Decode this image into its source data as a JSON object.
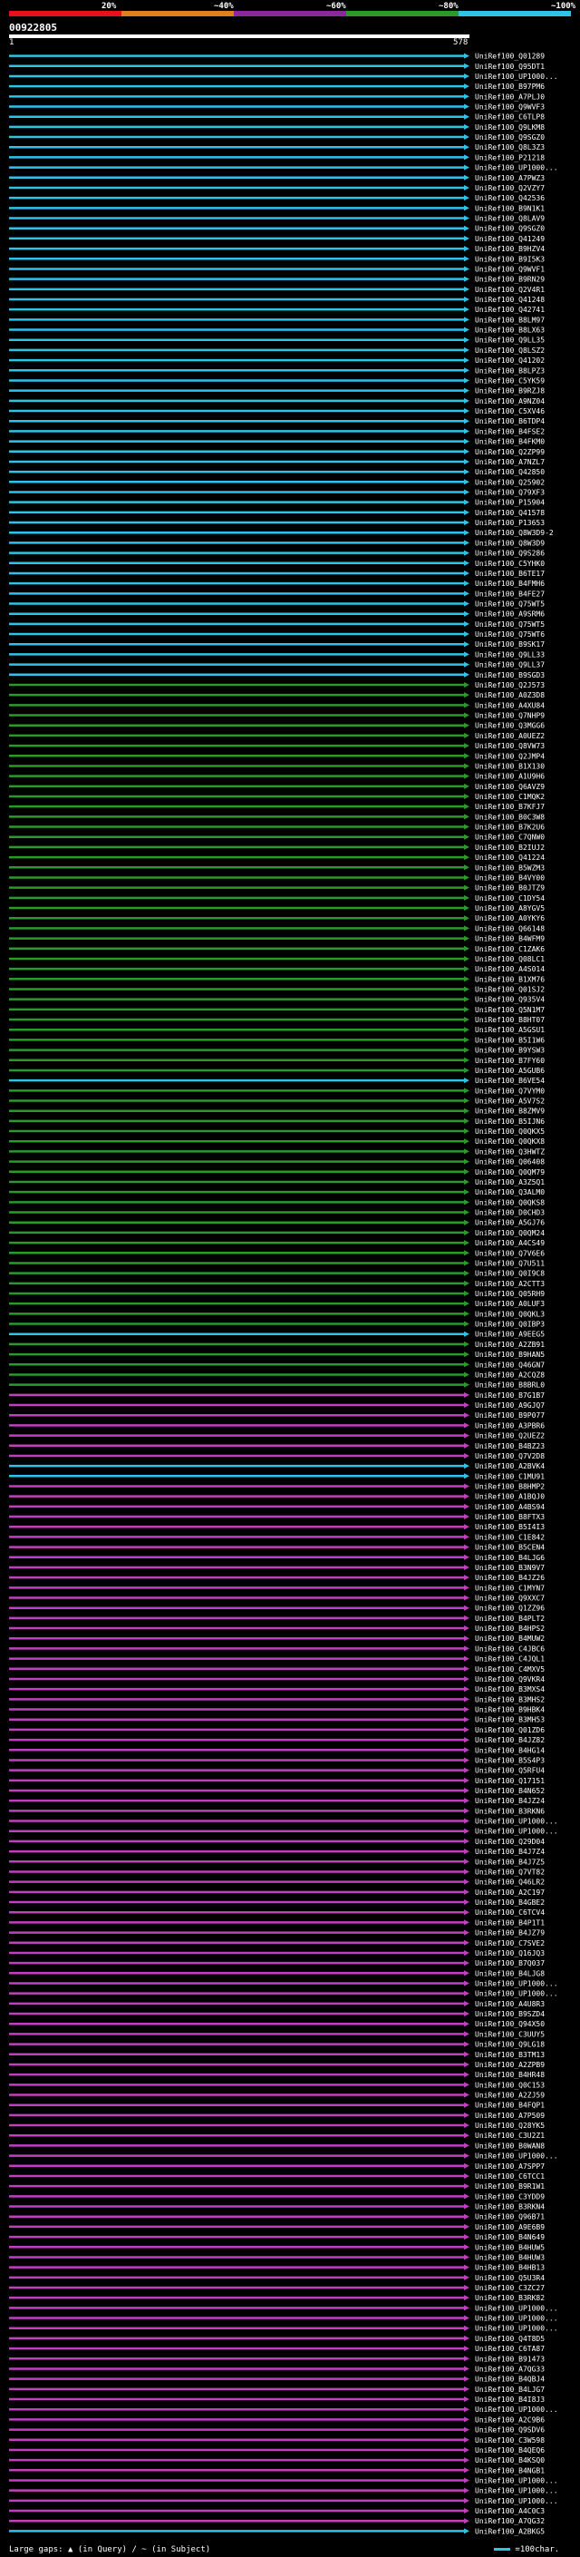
{
  "legend": {
    "segments": [
      {
        "label": "20%",
        "color": "#e8101e"
      },
      {
        "label": "~40%",
        "color": "#e0801c"
      },
      {
        "label": "~60%",
        "color": "#8a2a9a"
      },
      {
        "label": "~80%",
        "color": "#2a9a2a"
      },
      {
        "label": "~100%",
        "color": "#2ec4e8"
      }
    ]
  },
  "query": {
    "name": "00922805",
    "start": "1",
    "end": "578"
  },
  "colors": {
    "cyan": "#2ec4e8",
    "green": "#2a9a2a",
    "magenta": "#c040c0"
  },
  "hits": {
    "labels": [
      "UniRef100_Q01289",
      "UniRef100_Q95DT1",
      "UniRef100_UP1000...",
      "UniRef100_B97PM6",
      "UniRef100_A7PLJ0",
      "UniRef100_Q9WVF3",
      "UniRef100_C6TLP8",
      "UniRef100_Q9LKM8",
      "UniRef100_Q9SGZ0",
      "UniRef100_Q8L3Z3",
      "UniRef100_P21218",
      "UniRef100_UP1000...",
      "UniRef100_A7PWZ3",
      "UniRef100_Q2VZY7",
      "UniRef100_Q42536",
      "UniRef100_B9N1K1",
      "UniRef100_Q8LAV9",
      "UniRef100_Q9SGZ0",
      "UniRef100_Q41249",
      "UniRef100_B9HZV4",
      "UniRef100_B9I5K3",
      "UniRef100_Q9WVF1",
      "UniRef100_B9RN29",
      "UniRef100_Q2V4R1",
      "UniRef100_Q41248",
      "UniRef100_Q42741",
      "UniRef100_B8LM97",
      "UniRef100_B8LX63",
      "UniRef100_Q9LL35",
      "UniRef100_Q8LSZ2",
      "UniRef100_Q41202",
      "UniRef100_B8LPZ3",
      "UniRef100_C5YK59",
      "UniRef100_B9RZJ8",
      "UniRef100_A9NZ04",
      "UniRef100_C5XV46",
      "UniRef100_B6TDP4",
      "UniRef100_B4FSE2",
      "UniRef100_B4FKM0",
      "UniRef100_Q2ZP99",
      "UniRef100_A7NZL7",
      "UniRef100_Q42850",
      "UniRef100_Q25902",
      "UniRef100_Q79XF3",
      "UniRef100_P15904",
      "UniRef100_Q41578",
      "UniRef100_P13653",
      "UniRef100_Q8W3D9-2",
      "UniRef100_Q8W3D9",
      "UniRef100_Q9S286",
      "UniRef100_C5YHK0",
      "UniRef100_B6TE17",
      "UniRef100_B4FMH6",
      "UniRef100_B4FE27",
      "UniRef100_Q75WT5",
      "UniRef100_A9SRM6",
      "UniRef100_Q75WT5",
      "UniRef100_Q75WT6",
      "UniRef100_B9SK17",
      "UniRef100_Q9LL33",
      "UniRef100_Q9LL37",
      "UniRef100_B9SGD3",
      "UniRef100_Q2J573",
      "UniRef100_A0Z3D8",
      "UniRef100_A4XU84",
      "UniRef100_Q7NHP9",
      "UniRef100_Q3MGG6",
      "UniRef100_A0UEZ2",
      "UniRef100_Q8VW73",
      "UniRef100_Q2JMP4",
      "UniRef100_B1X130",
      "UniRef100_A1U9H6",
      "UniRef100_Q6AVZ9",
      "UniRef100_C1MQK2",
      "UniRef100_B7KFJ7",
      "UniRef100_B0C3W8",
      "UniRef100_B7K2U6",
      "UniRef100_C7QNW0",
      "UniRef100_B2IUJ2",
      "UniRef100_Q41224",
      "UniRef100_B5WZM3",
      "UniRef100_B4VY00",
      "UniRef100_B0JTZ9",
      "UniRef100_C1DY54",
      "UniRef100_A8YGV5",
      "UniRef100_A0YKY6",
      "UniRef100_Q66148",
      "UniRef100_B4WFM9",
      "UniRef100_C1ZAK6",
      "UniRef100_Q08LC1",
      "UniRef100_A4S014",
      "UniRef100_B1XM76",
      "UniRef100_Q01SJ2",
      "UniRef100_Q935V4",
      "UniRef100_Q5N1M7",
      "UniRef100_B8HT07",
      "UniRef100_A5GSU1",
      "UniRef100_B5I1W6",
      "UniRef100_B9YSW3",
      "UniRef100_B7FY60",
      "UniRef100_A5GUB6",
      "UniRef100_B6VE54",
      "UniRef100_Q7VYM0",
      "UniRef100_A5V7S2",
      "UniRef100_B8ZMV9",
      "UniRef100_B5IJN6",
      "UniRef100_Q0QKX5",
      "UniRef100_Q0QKX8",
      "UniRef100_Q3HWTZ",
      "UniRef100_Q06408",
      "UniRef100_Q0QM79",
      "UniRef100_A3Z5Q1",
      "UniRef100_Q3ALM0",
      "UniRef100_Q0QKS8",
      "UniRef100_D0CHD3",
      "UniRef100_A5GJ76",
      "UniRef100_Q0QM24",
      "UniRef100_A4CS49",
      "UniRef100_Q7V6E6",
      "UniRef100_Q7U511",
      "UniRef100_Q0I9C8",
      "UniRef100_A2CTT3",
      "UniRef100_Q05RH9",
      "UniRef100_A0LUF3",
      "UniRef100_Q0QKL3",
      "UniRef100_Q0IBP3",
      "UniRef100_A9EEG5",
      "UniRef100_A2ZB91",
      "UniRef100_B9HAN5",
      "UniRef100_Q46GN7",
      "UniRef100_A2CQZ8",
      "UniRef100_B8BRL0",
      "UniRef100_B7G1B7",
      "UniRef100_A9GJQ7",
      "UniRef100_B9P077",
      "UniRef100_A3PBR6",
      "UniRef100_Q2UEZ2",
      "UniRef100_B4BZ23",
      "UniRef100_Q7V2D8",
      "UniRef100_A2BVK4",
      "UniRef100_C1MU91",
      "UniRef100_B8HMP2",
      "UniRef100_A1BQJ0",
      "UniRef100_A4BS94",
      "UniRef100_B8FTX3",
      "UniRef100_B5I4I3",
      "UniRef100_C1E842",
      "UniRef100_B5CEN4",
      "UniRef100_B4LJG6",
      "UniRef100_B3N9V7",
      "UniRef100_B4JZ26",
      "UniRef100_C1MYN7",
      "UniRef100_Q9XXC7",
      "UniRef100_Q1ZZ96",
      "UniRef100_B4PLT2",
      "UniRef100_B4HPS2",
      "UniRef100_B4MUW2",
      "UniRef100_C4JBC6",
      "UniRef100_C4JQL1",
      "UniRef100_C4MXV5",
      "UniRef100_Q9VKR4",
      "UniRef100_B3MXS4",
      "UniRef100_B3MHS2",
      "UniRef100_B9HBK4",
      "UniRef100_B3MH53",
      "UniRef100_Q01ZD6",
      "UniRef100_B4JZ82",
      "UniRef100_B4HG14",
      "UniRef100_B5S4P3",
      "UniRef100_Q5RFU4",
      "UniRef100_Q17151",
      "UniRef100_B4N652",
      "UniRef100_B4JZ24",
      "UniRef100_B3RKN6",
      "UniRef100_UP1000...",
      "UniRef100_UP1000...",
      "UniRef100_Q29D04",
      "UniRef100_B4J7Z4",
      "UniRef100_B4J7Z5",
      "UniRef100_Q7VT82",
      "UniRef100_Q46LR2",
      "UniRef100_A2C197",
      "UniRef100_B4GBE2",
      "UniRef100_C6TCV4",
      "UniRef100_B4P1T1",
      "UniRef100_B4JZ79",
      "UniRef100_C7SVE2",
      "UniRef100_Q16JQ3",
      "UniRef100_B7Q037",
      "UniRef100_B4LJG8",
      "UniRef100_UP1000...",
      "UniRef100_UP1000...",
      "UniRef100_A4U8R3",
      "UniRef100_B9SZD4",
      "UniRef100_Q94X50",
      "UniRef100_C3UUY5",
      "UniRef100_Q9LG18",
      "UniRef100_B3TM13",
      "UniRef100_A2ZPB9",
      "UniRef100_B4HR48",
      "UniRef100_Q0C153",
      "UniRef100_A2ZJ59",
      "UniRef100_B4FQP1",
      "UniRef100_A7P509",
      "UniRef100_Q28YK5",
      "UniRef100_C3U2Z1",
      "UniRef100_B0WAN8",
      "UniRef100_UP1000...",
      "UniRef100_A7SPP7",
      "UniRef100_C6TCC1",
      "UniRef100_B9R1W1",
      "UniRef100_C3YDD9",
      "UniRef100_B3RKN4",
      "UniRef100_Q96B71",
      "UniRef100_A9E6B9",
      "UniRef100_B4N649",
      "UniRef100_B4HUW5",
      "UniRef100_B4HUW3",
      "UniRef100_B4HB13",
      "UniRef100_Q5U3R4",
      "UniRef100_C3ZC27",
      "UniRef100_B3RK82",
      "UniRef100_UP1000...",
      "UniRef100_UP1000...",
      "UniRef100_UP1000...",
      "UniRef100_Q4T8D5",
      "UniRef100_C6TA87",
      "UniRef100_B91473",
      "UniRef100_A7QG33",
      "UniRef100_B4QBJ4",
      "UniRef100_B4LJG7",
      "UniRef100_B4I8J3",
      "UniRef100_UP1000...",
      "UniRef100_A2C9B6",
      "UniRef100_Q9SDV6",
      "UniRef100_C3W598",
      "UniRef100_B4QEQ6",
      "UniRef100_B4KSQ0",
      "UniRef100_B4NGB1",
      "UniRef100_UP1000...",
      "UniRef100_UP1000...",
      "UniRef100_UP1000...",
      "UniRef100_A4C0C3",
      "UniRef100_A7QG32",
      "UniRef100_A2BKG5"
    ],
    "colors": [
      "cyan",
      "cyan",
      "cyan",
      "cyan",
      "cyan",
      "cyan",
      "cyan",
      "cyan",
      "cyan",
      "cyan",
      "cyan",
      "cyan",
      "cyan",
      "cyan",
      "cyan",
      "cyan",
      "cyan",
      "cyan",
      "cyan",
      "cyan",
      "cyan",
      "cyan",
      "cyan",
      "cyan",
      "cyan",
      "cyan",
      "cyan",
      "cyan",
      "cyan",
      "cyan",
      "cyan",
      "cyan",
      "cyan",
      "cyan",
      "cyan",
      "cyan",
      "cyan",
      "cyan",
      "cyan",
      "cyan",
      "cyan",
      "cyan",
      "cyan",
      "cyan",
      "cyan",
      "cyan",
      "cyan",
      "cyan",
      "cyan",
      "cyan",
      "cyan",
      "cyan",
      "cyan",
      "cyan",
      "cyan",
      "cyan",
      "cyan",
      "cyan",
      "cyan",
      "cyan",
      "cyan",
      "cyan",
      "green",
      "green",
      "green",
      "green",
      "green",
      "green",
      "green",
      "green",
      "green",
      "green",
      "green",
      "green",
      "green",
      "green",
      "green",
      "green",
      "green",
      "green",
      "green",
      "green",
      "green",
      "green",
      "green",
      "green",
      "green",
      "green",
      "green",
      "green",
      "green",
      "green",
      "green",
      "green",
      "green",
      "green",
      "green",
      "green",
      "green",
      "green",
      "green",
      "cyan",
      "green",
      "green",
      "green",
      "green",
      "green",
      "green",
      "green",
      "green",
      "green",
      "green",
      "green",
      "green",
      "green",
      "green",
      "green",
      "green",
      "green",
      "green",
      "green",
      "green",
      "green",
      "green",
      "green",
      "green",
      "cyan",
      "green",
      "green",
      "green",
      "green",
      "green",
      "magenta",
      "magenta",
      "magenta",
      "magenta",
      "magenta",
      "magenta",
      "magenta",
      "cyan",
      "cyan",
      "magenta",
      "magenta",
      "magenta",
      "magenta",
      "magenta",
      "magenta",
      "magenta",
      "magenta",
      "magenta",
      "magenta",
      "magenta",
      "magenta",
      "magenta",
      "magenta",
      "magenta",
      "magenta",
      "magenta",
      "magenta",
      "magenta",
      "magenta",
      "magenta",
      "magenta",
      "magenta",
      "magenta",
      "magenta",
      "magenta",
      "magenta",
      "magenta",
      "magenta",
      "magenta",
      "magenta",
      "magenta",
      "magenta",
      "magenta",
      "magenta",
      "magenta",
      "magenta",
      "magenta",
      "magenta",
      "magenta",
      "magenta",
      "magenta",
      "magenta",
      "magenta",
      "magenta",
      "magenta",
      "magenta",
      "magenta",
      "magenta",
      "magenta",
      "magenta",
      "magenta",
      "magenta",
      "magenta",
      "magenta",
      "magenta",
      "magenta",
      "magenta",
      "magenta",
      "magenta",
      "magenta",
      "magenta",
      "magenta",
      "magenta",
      "magenta",
      "magenta",
      "magenta",
      "magenta",
      "magenta",
      "magenta",
      "magenta",
      "magenta",
      "magenta",
      "magenta",
      "magenta",
      "magenta",
      "magenta",
      "magenta",
      "magenta",
      "magenta",
      "magenta",
      "magenta",
      "magenta",
      "magenta",
      "magenta",
      "magenta",
      "magenta",
      "magenta",
      "magenta",
      "magenta",
      "magenta",
      "magenta",
      "magenta",
      "magenta",
      "magenta",
      "magenta",
      "magenta",
      "magenta",
      "magenta",
      "magenta",
      "magenta",
      "magenta",
      "magenta"
    ]
  },
  "footer": {
    "text": "Large gaps: ▲ (in Query) / ~ (in Subject)",
    "scale": "=100char."
  }
}
